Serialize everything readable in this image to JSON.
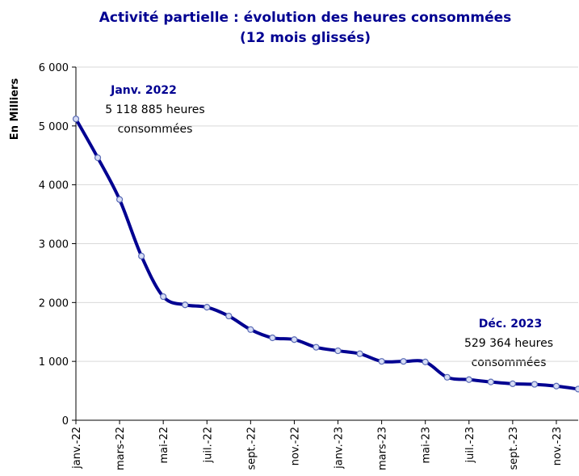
{
  "chart_data": {
    "type": "line",
    "title": [
      "Activité partielle : évolution des heures consommées",
      "(12 mois glissés)"
    ],
    "y_label": "En Milliers",
    "categories": [
      "janv.-22",
      null,
      "mars-22",
      null,
      "mai-22",
      null,
      "juil.-22",
      null,
      "sept.-22",
      null,
      "nov.-22",
      null,
      "janv.-23",
      null,
      "mars-23",
      null,
      "mai-23",
      null,
      "juil.-23",
      null,
      "sept.-23",
      null,
      "nov.-23",
      null
    ],
    "series": [
      {
        "name": "Heures consommées",
        "color": "#000091",
        "values": [
          5118.885,
          4460,
          3750,
          2790,
          2100,
          1960,
          1920,
          1770,
          1540,
          1400,
          1370,
          1240,
          1180,
          1130,
          1000,
          1000,
          990,
          730,
          690,
          650,
          620,
          610,
          580,
          529.364
        ]
      }
    ],
    "ylim": [
      0,
      6000
    ],
    "yticks": [
      0,
      {
        "value": 1000,
        "label": "1 000"
      },
      {
        "value": 2000,
        "label": "2 000"
      },
      {
        "value": 3000,
        "label": "3 000"
      },
      {
        "value": 4000,
        "label": "4 000"
      },
      {
        "value": 5000,
        "label": "5 000"
      },
      {
        "value": 6000,
        "label": "6 000"
      }
    ],
    "grid": true,
    "annotations": [
      {
        "title": "Janv. 2022",
        "text": [
          "5 118 885 heures",
          "consommées"
        ]
      },
      {
        "title": "Déc. 2023",
        "text": [
          "529 364 heures",
          "consommées"
        ]
      }
    ]
  }
}
